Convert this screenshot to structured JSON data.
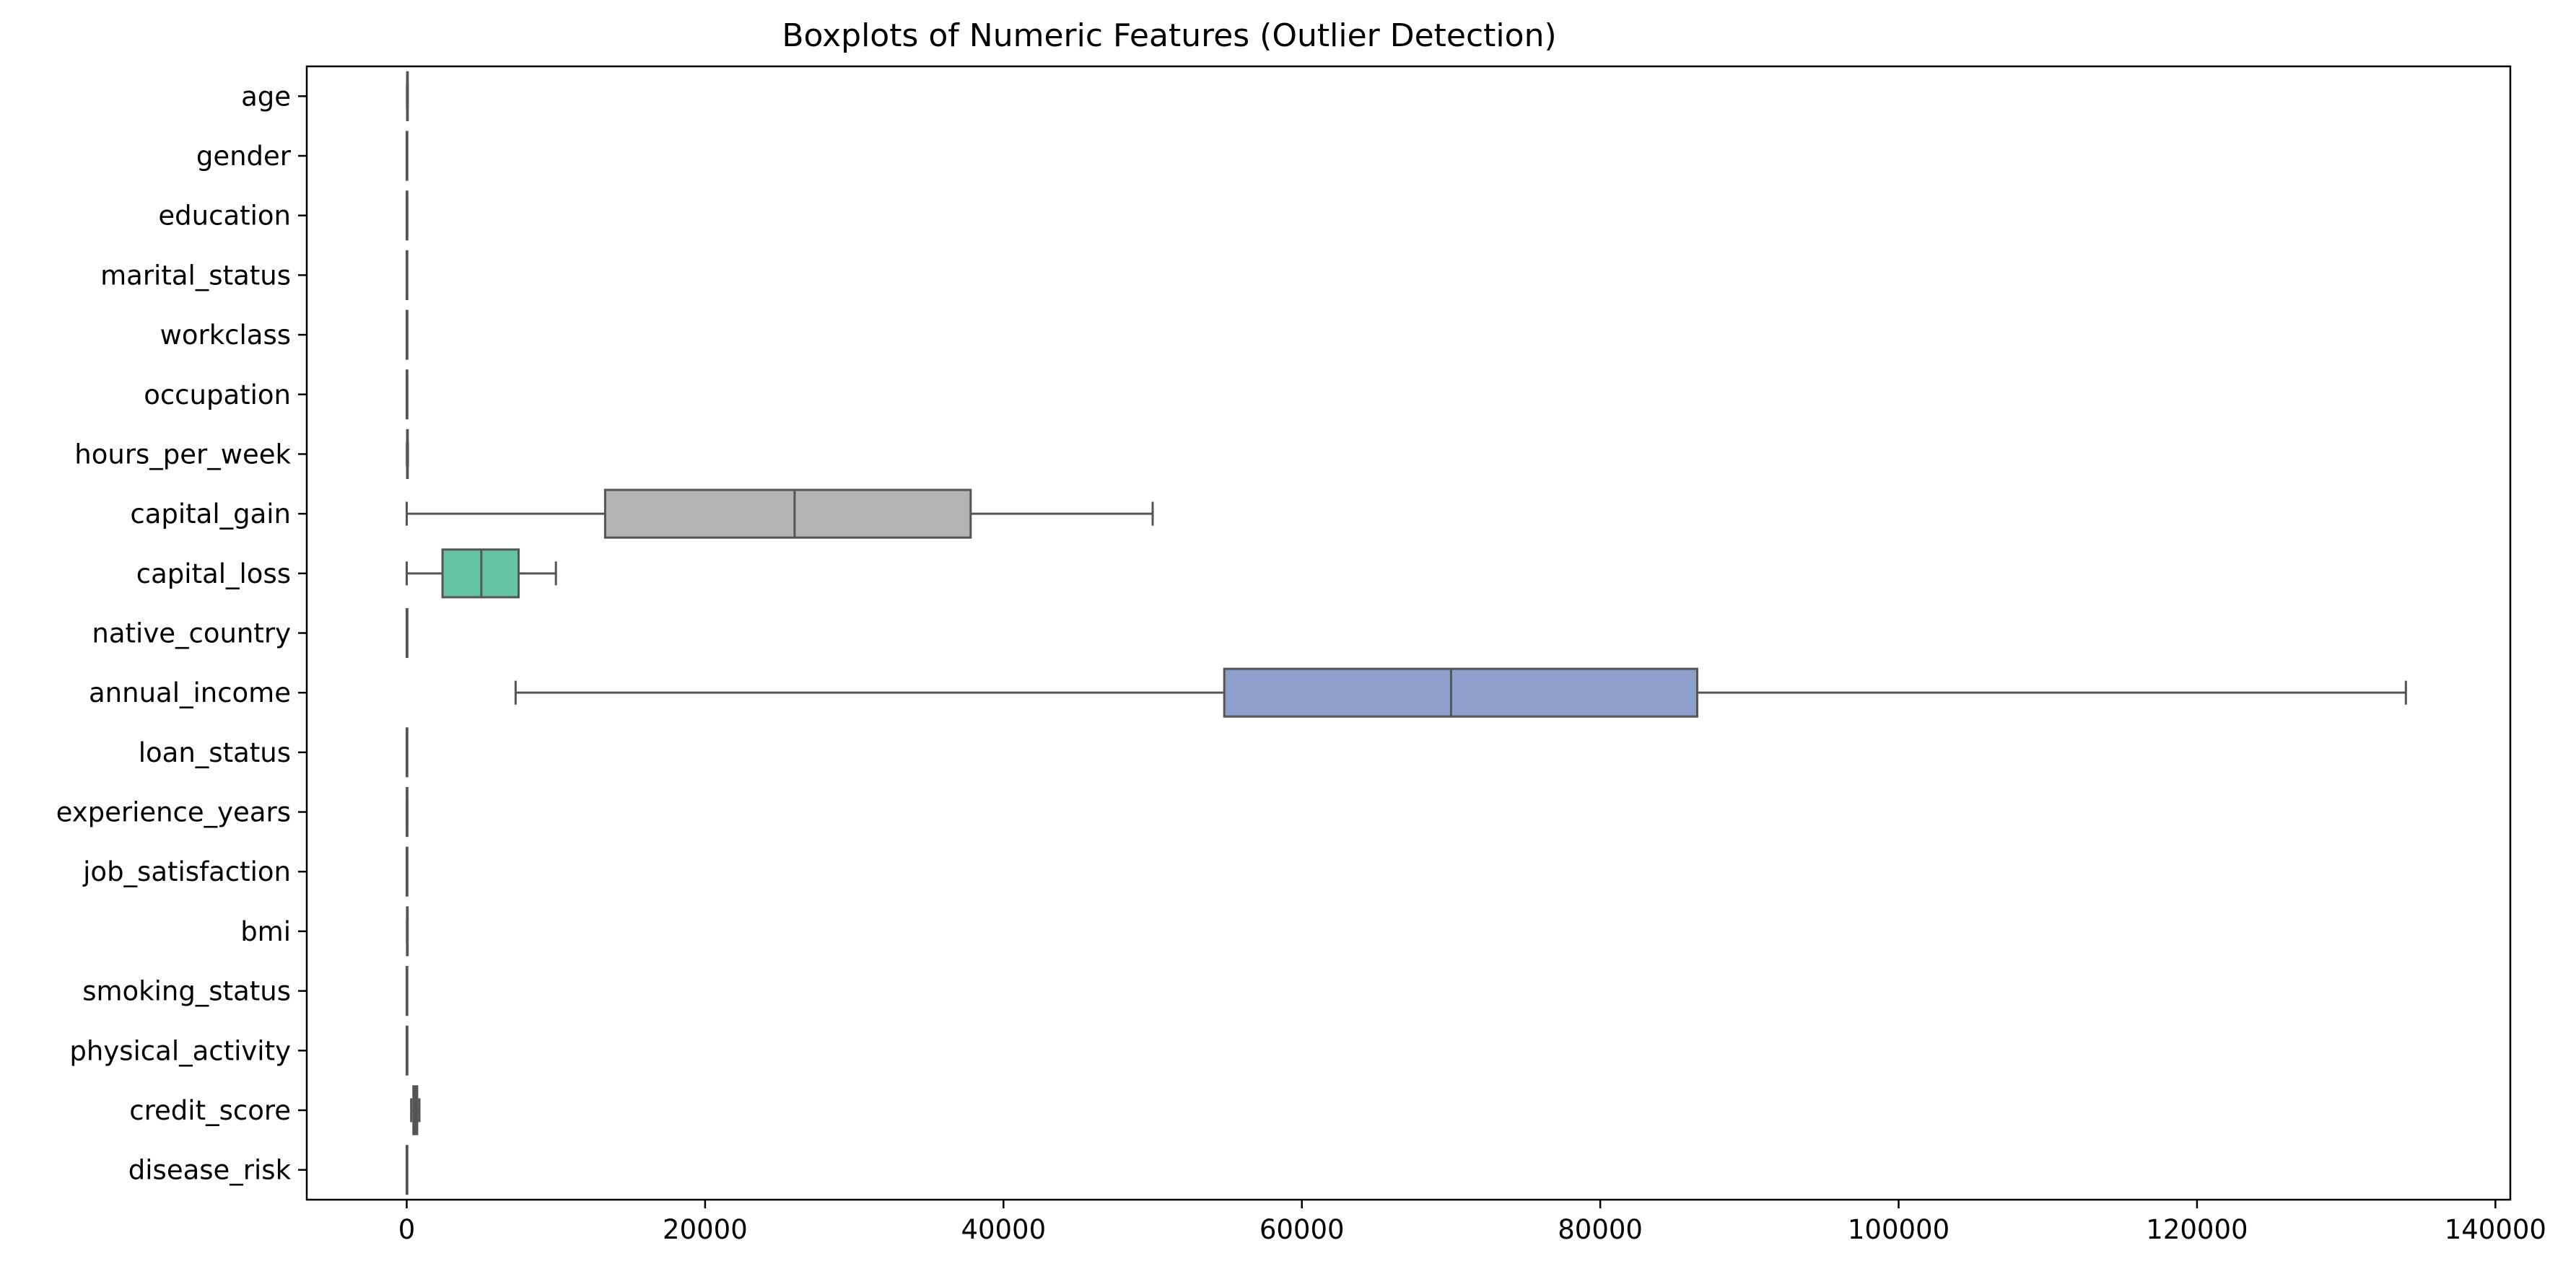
{
  "chart_data": {
    "type": "boxplot",
    "orientation": "horizontal",
    "title": "Boxplots of Numeric Features (Outlier Detection)",
    "xlabel": "",
    "ylabel": "",
    "xlim": [
      -6700,
      141000
    ],
    "xticks": [
      0,
      20000,
      40000,
      60000,
      80000,
      100000,
      120000,
      140000
    ],
    "xtick_labels": [
      "0",
      "20000",
      "40000",
      "60000",
      "80000",
      "100000",
      "120000",
      "140000"
    ],
    "grid": false,
    "categories": [
      "age",
      "gender",
      "education",
      "marital_status",
      "workclass",
      "occupation",
      "hours_per_week",
      "capital_gain",
      "capital_loss",
      "native_country",
      "annual_income",
      "loan_status",
      "experience_years",
      "job_satisfaction",
      "bmi",
      "smoking_status",
      "physical_activity",
      "credit_score",
      "disease_risk"
    ],
    "boxes": [
      {
        "name": "age",
        "whislo": 18,
        "q1": 30,
        "med": 42,
        "q3": 54,
        "whishi": 65,
        "color": "#66c2a5"
      },
      {
        "name": "gender",
        "whislo": 0,
        "q1": 0,
        "med": 0,
        "q3": 1,
        "whishi": 1,
        "color": "#fc8d62"
      },
      {
        "name": "education",
        "whislo": 0,
        "q1": 1,
        "med": 2,
        "q3": 3,
        "whishi": 4,
        "color": "#8da0cb"
      },
      {
        "name": "marital_status",
        "whislo": 0,
        "q1": 0,
        "med": 1,
        "q3": 2,
        "whishi": 3,
        "color": "#e78ac3"
      },
      {
        "name": "workclass",
        "whislo": 0,
        "q1": 1,
        "med": 2,
        "q3": 3,
        "whishi": 4,
        "color": "#a6d854"
      },
      {
        "name": "occupation",
        "whislo": 0,
        "q1": 2,
        "med": 4,
        "q3": 7,
        "whishi": 10,
        "color": "#ffd92f"
      },
      {
        "name": "hours_per_week",
        "whislo": 10,
        "q1": 30,
        "med": 40,
        "q3": 50,
        "whishi": 80,
        "color": "#e5c494"
      },
      {
        "name": "capital_gain",
        "whislo": 0,
        "q1": 13300,
        "med": 26000,
        "q3": 37800,
        "whishi": 50000,
        "color": "#b3b3b3"
      },
      {
        "name": "capital_loss",
        "whislo": 0,
        "q1": 2400,
        "med": 5000,
        "q3": 7500,
        "whishi": 10000,
        "color": "#66c2a5"
      },
      {
        "name": "native_country",
        "whislo": 0,
        "q1": 2,
        "med": 5,
        "q3": 8,
        "whishi": 10,
        "color": "#fc8d62"
      },
      {
        "name": "annual_income",
        "whislo": 7300,
        "q1": 54800,
        "med": 70000,
        "q3": 86500,
        "whishi": 134000,
        "color": "#8da0cb"
      },
      {
        "name": "loan_status",
        "whislo": 0,
        "q1": 0,
        "med": 0,
        "q3": 1,
        "whishi": 1,
        "color": "#e78ac3"
      },
      {
        "name": "experience_years",
        "whislo": 0,
        "q1": 5,
        "med": 15,
        "q3": 25,
        "whishi": 40,
        "color": "#a6d854"
      },
      {
        "name": "job_satisfaction",
        "whislo": 1,
        "q1": 2,
        "med": 3,
        "q3": 4,
        "whishi": 5,
        "color": "#ffd92f"
      },
      {
        "name": "bmi",
        "whislo": 15,
        "q1": 22,
        "med": 26,
        "q3": 30,
        "whishi": 40,
        "color": "#e5c494"
      },
      {
        "name": "smoking_status",
        "whislo": 0,
        "q1": 0,
        "med": 1,
        "q3": 1,
        "whishi": 2,
        "color": "#b3b3b3"
      },
      {
        "name": "physical_activity",
        "whislo": 0,
        "q1": 1,
        "med": 2,
        "q3": 3,
        "whishi": 4,
        "color": "#66c2a5"
      },
      {
        "name": "credit_score",
        "whislo": 300,
        "q1": 450,
        "med": 575,
        "q3": 700,
        "whishi": 850,
        "color": "#fc8d62"
      },
      {
        "name": "disease_risk",
        "whislo": 0,
        "q1": 0,
        "med": 0,
        "q3": 1,
        "whishi": 1,
        "color": "#8da0cb"
      }
    ],
    "line_color": "#555555"
  }
}
